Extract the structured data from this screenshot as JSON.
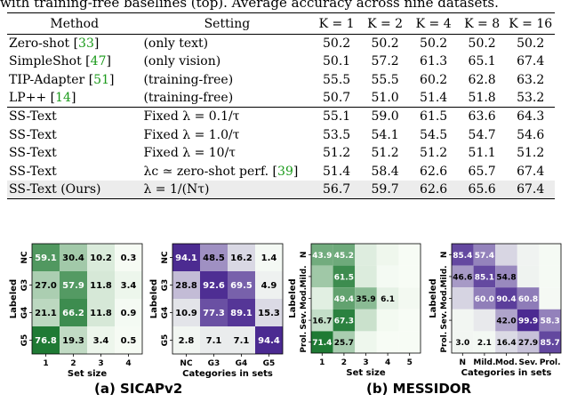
{
  "caption_top": "with training-free baselines (top). Average accuracy across nine datasets.",
  "table": {
    "headers": [
      "Method",
      "Setting",
      "K = 1",
      "K = 2",
      "K = 4",
      "K = 8",
      "K = 16"
    ],
    "group1": [
      {
        "method": "Zero-shot",
        "cite": "33",
        "setting": "(only text)",
        "values": [
          "50.2",
          "50.2",
          "50.2",
          "50.2",
          "50.2"
        ],
        "bold": [
          false,
          false,
          false,
          false,
          false
        ]
      },
      {
        "method": "SimpleShot",
        "cite": "47",
        "setting": "(only vision)",
        "values": [
          "50.1",
          "57.2",
          "61.3",
          "65.1",
          "67.4"
        ],
        "bold": [
          false,
          false,
          false,
          false,
          true
        ]
      },
      {
        "method": "TIP-Adapter",
        "cite": "51",
        "setting": "(training-free)",
        "values": [
          "55.5",
          "55.5",
          "60.2",
          "62.8",
          "63.2"
        ],
        "bold": [
          false,
          false,
          false,
          false,
          false
        ]
      },
      {
        "method": "LP++",
        "cite": "14",
        "setting": "(training-free)",
        "values": [
          "50.7",
          "51.0",
          "51.4",
          "51.8",
          "53.2"
        ],
        "bold": [
          false,
          false,
          false,
          false,
          false
        ]
      }
    ],
    "group2": [
      {
        "method": "SS-Text",
        "setting": "Fixed λ = 0.1/τ",
        "values": [
          "55.1",
          "59.0",
          "61.5",
          "63.6",
          "64.3"
        ],
        "bold": [
          false,
          false,
          false,
          false,
          false
        ]
      },
      {
        "method": "SS-Text",
        "setting": "Fixed λ = 1.0/τ",
        "values": [
          "53.5",
          "54.1",
          "54.5",
          "54.7",
          "54.6"
        ],
        "bold": [
          false,
          false,
          false,
          false,
          false
        ]
      },
      {
        "method": "SS-Text",
        "setting": "Fixed λ = 10/τ",
        "values": [
          "51.2",
          "51.2",
          "51.2",
          "51.1",
          "51.2"
        ],
        "bold": [
          false,
          false,
          false,
          false,
          false
        ]
      },
      {
        "method": "SS-Text",
        "setting": "λc ≃ zero-shot perf.",
        "setting_cite": "39",
        "values": [
          "51.4",
          "58.4",
          "62.6",
          "65.7",
          "67.4"
        ],
        "bold": [
          false,
          false,
          false,
          true,
          true
        ]
      },
      {
        "method": "SS-Text (Ours)",
        "setting": "λ = 1/(Nτ)",
        "values": [
          "56.7",
          "59.7",
          "62.6",
          "65.6",
          "67.4"
        ],
        "bold": [
          true,
          true,
          true,
          false,
          true
        ],
        "highlight": true
      }
    ]
  },
  "chart_data": [
    {
      "type": "heatmap",
      "ylabel": "Labeled",
      "xlabel": "Set size",
      "x_ticks": [
        "1",
        "2",
        "3",
        "4"
      ],
      "y_ticks": [
        "NC",
        "G3",
        "G4",
        "G5"
      ],
      "values": [
        [
          59.1,
          30.4,
          10.2,
          0.3
        ],
        [
          27.0,
          57.9,
          11.8,
          3.4
        ],
        [
          21.1,
          66.2,
          11.8,
          0.9
        ],
        [
          76.8,
          19.3,
          3.4,
          0.5
        ]
      ],
      "labels": [
        [
          "59.1",
          "30.4",
          "10.2",
          "0.3"
        ],
        [
          "27.0",
          "57.9",
          "11.8",
          "3.4"
        ],
        [
          "21.1",
          "66.2",
          "11.8",
          "0.9"
        ],
        [
          "76.8",
          "19.3",
          "3.4",
          "0.5"
        ]
      ],
      "color": "#1f7a34"
    },
    {
      "type": "heatmap",
      "ylabel": "Labeled",
      "xlabel": "Categories in sets",
      "x_ticks": [
        "NC",
        "G3",
        "G4",
        "G5"
      ],
      "y_ticks": [
        "NC",
        "G3",
        "G4",
        "G5"
      ],
      "values": [
        [
          94.1,
          48.5,
          16.2,
          1.4
        ],
        [
          28.8,
          92.6,
          69.5,
          4.9
        ],
        [
          10.9,
          77.3,
          89.1,
          15.3
        ],
        [
          2.8,
          7.1,
          7.1,
          94.4
        ]
      ],
      "labels": [
        [
          "94.1",
          "48.5",
          "16.2",
          "1.4"
        ],
        [
          "28.8",
          "92.6",
          "69.5",
          "4.9"
        ],
        [
          "10.9",
          "77.3",
          "89.1",
          "15.3"
        ],
        [
          "2.8",
          "7.1",
          "7.1",
          "94.4"
        ]
      ],
      "color": "#4b2a91"
    },
    {
      "type": "heatmap",
      "ylabel": "Labeled",
      "xlabel": "Set size",
      "x_ticks": [
        "1",
        "2",
        "3",
        "4",
        "5"
      ],
      "y_ticks": [
        "N",
        "Mild.",
        "Mod.",
        "Sev.",
        "Prol."
      ],
      "values": [
        [
          43.9,
          45.2,
          8.1,
          2.8,
          0.0
        ],
        [
          28.7,
          61.5,
          8.9,
          0.9,
          0.0
        ],
        [
          7.2,
          49.4,
          35.9,
          6.1,
          1.4
        ],
        [
          16.7,
          67.3,
          15.0,
          1.3,
          0.0
        ],
        [
          71.4,
          25.7,
          2.9,
          0.0,
          0.0
        ]
      ],
      "labels": [
        [
          "43.9",
          "45.2",
          "",
          "",
          ""
        ],
        [
          "",
          "61.5",
          "",
          "",
          ""
        ],
        [
          "",
          "49.4",
          "35.9",
          "6.1",
          ""
        ],
        [
          "16.7",
          "67.3",
          "",
          "",
          ""
        ],
        [
          "71.4",
          "25.7",
          "",
          "",
          ""
        ]
      ],
      "color": "#1f7a34"
    },
    {
      "type": "heatmap",
      "ylabel": "Labeled",
      "xlabel": "Categories in sets",
      "x_ticks": [
        "N",
        "Mild.",
        "Mod.",
        "Sev.",
        "Prol."
      ],
      "y_ticks": [
        "N",
        "Mild.",
        "Mod.",
        "Sev.",
        "Prol."
      ],
      "values": [
        [
          85.4,
          57.4,
          18.0,
          4.2,
          1.0
        ],
        [
          46.6,
          85.1,
          54.8,
          4.5,
          0.9
        ],
        [
          19.1,
          60.0,
          90.4,
          60.8,
          1.3
        ],
        [
          3.0,
          9.0,
          42.0,
          99.9,
          58.3
        ],
        [
          3.0,
          2.1,
          16.4,
          27.9,
          85.7
        ]
      ],
      "labels": [
        [
          "85.4",
          "57.4",
          "",
          "",
          ""
        ],
        [
          "46.6",
          "85.1",
          "54.8",
          "",
          ""
        ],
        [
          "",
          "60.0",
          "90.4",
          "60.8",
          ""
        ],
        [
          "",
          "",
          "42.0",
          "99.9",
          "58.3"
        ],
        [
          "3.0",
          "2.1",
          "16.4",
          "27.9",
          "85.7"
        ]
      ],
      "color": "#4b2a91"
    }
  ],
  "sub_captions": {
    "a": "(a) SICAPv2",
    "b": "(b) MESSIDOR"
  }
}
